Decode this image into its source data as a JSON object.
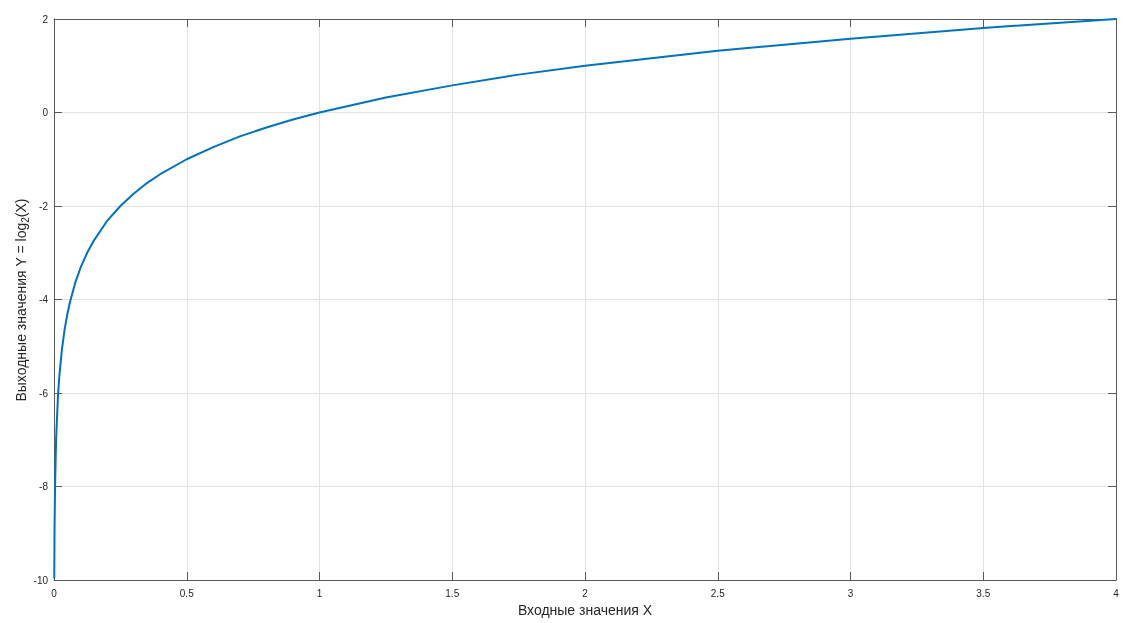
{
  "chart_data": {
    "type": "line",
    "xlabel": "Входные значения X",
    "ylabel": "Выходные значения Y = log$_{2}$(X)",
    "x": [
      0.001,
      0.002,
      0.004,
      0.008,
      0.015,
      0.02,
      0.03,
      0.04,
      0.05,
      0.06,
      0.08,
      0.1,
      0.125,
      0.15,
      0.2,
      0.25,
      0.3,
      0.35,
      0.4,
      0.5,
      0.6,
      0.7,
      0.8,
      0.9,
      1,
      1.25,
      1.5,
      1.75,
      2,
      2.5,
      3,
      3.5,
      4
    ],
    "series": [
      {
        "color": "#0072bd",
        "values": [
          -9.95,
          -8.97,
          -7.97,
          -6.97,
          -6.06,
          -5.64,
          -5.06,
          -4.64,
          -4.32,
          -4.06,
          -3.64,
          -3.32,
          -3,
          -2.74,
          -2.32,
          -2,
          -1.74,
          -1.51,
          -1.32,
          -1,
          -0.74,
          -0.51,
          -0.32,
          -0.15,
          0,
          0.32,
          0.58,
          0.81,
          1,
          1.32,
          1.58,
          1.81,
          2
        ]
      }
    ],
    "xlim": [
      0,
      4
    ],
    "xticks": [
      0,
      0.5,
      1,
      1.5,
      2,
      2.5,
      3,
      3.5,
      4
    ],
    "ylim": [
      -10,
      2
    ],
    "yticks": [
      -10,
      -8,
      -6,
      -4,
      -2,
      0,
      2
    ],
    "grid": true
  }
}
